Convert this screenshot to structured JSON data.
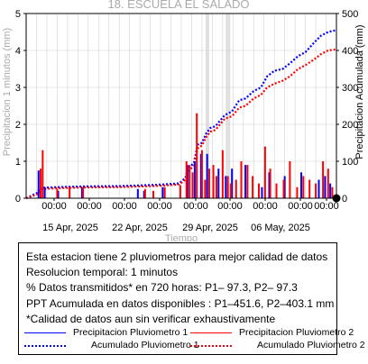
{
  "chart_data": {
    "type": "bar",
    "title": "18. ESCUELA EL SALADO",
    "xlabel": "Tiempo",
    "ylabel_left": "Precipitacion 1 minutos (mm)",
    "ylabel_right": "Precipitacion Acumulada (mm)",
    "ylim_left": [
      0,
      5
    ],
    "ylim_right": [
      0,
      500
    ],
    "yticks_left": [
      "0",
      "1",
      "2",
      "3",
      "4",
      "5"
    ],
    "yticks_right": [
      "0",
      "100",
      "200",
      "300",
      "400",
      "500"
    ],
    "xticks_time": [
      "00:00",
      "00:00",
      "00:00",
      "00:00",
      "00:00",
      "00:00",
      "00:00",
      "00:00",
      "00:00",
      "00:00"
    ],
    "xticks_date": [
      "15 Apr, 2025",
      "22 Apr, 2025",
      "29 Apr, 2025",
      "06 May, 2025"
    ],
    "x_range_days": [
      0,
      30
    ],
    "grid": true,
    "series": [
      {
        "name": "Precipitacion Pluviometro 1",
        "color": "#0000ff",
        "style": "bars",
        "x_days": [
          1.2,
          1.8,
          3.1,
          5.4,
          10.8,
          11.4,
          13.2,
          15.6,
          16.3,
          16.9,
          17.5,
          18.6,
          19.3,
          19.9,
          21.2,
          22.8,
          23.5,
          25.0,
          26.6,
          28.3,
          28.9,
          29.4
        ],
        "values": [
          0.75,
          0.3,
          0.2,
          0.3,
          0.25,
          0.2,
          0.3,
          0.9,
          1.0,
          1.2,
          1.2,
          0.8,
          0.6,
          0.8,
          0.9,
          0.3,
          0.7,
          0.6,
          0.7,
          0.5,
          0.6,
          0.4
        ]
      },
      {
        "name": "Precipitacion Pluviometro 2",
        "color": "#ff0000",
        "style": "bars",
        "x_days": [
          1.4,
          1.6,
          3.0,
          4.2,
          5.5,
          11.5,
          12.3,
          13.4,
          14.9,
          15.5,
          15.8,
          16.1,
          16.5,
          17.0,
          17.3,
          17.7,
          18.1,
          18.4,
          19.0,
          19.5,
          19.8,
          20.3,
          20.8,
          21.4,
          21.9,
          22.5,
          23.1,
          23.6,
          24.2,
          24.9,
          25.5,
          26.2,
          26.8,
          27.4,
          28.0,
          28.7,
          29.2,
          29.6
        ],
        "values": [
          0.8,
          1.3,
          0.25,
          0.3,
          0.3,
          0.25,
          0.2,
          0.3,
          0.35,
          1.0,
          0.9,
          0.7,
          2.3,
          1.3,
          0.5,
          0.8,
          0.9,
          0.6,
          1.3,
          0.6,
          0.4,
          0.5,
          1.0,
          0.9,
          0.6,
          0.4,
          1.4,
          0.8,
          0.4,
          0.5,
          1.0,
          0.3,
          0.6,
          0.5,
          0.4,
          1.0,
          0.8,
          0.3
        ]
      },
      {
        "name": "Acumulado Pluviometro 1",
        "color": "#0000ff",
        "style": "dotted",
        "axis": "right",
        "x_days": [
          0,
          1.1,
          1.3,
          3.0,
          5.5,
          9.0,
          12.5,
          14.8,
          15.4,
          15.6,
          16.2,
          16.6,
          17.0,
          17.4,
          17.8,
          18.3,
          19.2,
          19.9,
          20.6,
          21.2,
          22.0,
          22.7,
          23.3,
          24.0,
          24.8,
          25.5,
          26.3,
          27.0,
          27.8,
          28.5,
          29.2,
          30.0
        ],
        "values": [
          0,
          15,
          28,
          30,
          32,
          33,
          36,
          40,
          55,
          80,
          95,
          145,
          150,
          175,
          190,
          195,
          225,
          235,
          265,
          270,
          290,
          300,
          330,
          345,
          350,
          365,
          385,
          395,
          420,
          440,
          450,
          455
        ]
      },
      {
        "name": "Acumulado Pluviometro 2",
        "color": "#ff0000",
        "style": "dotted",
        "axis": "right",
        "x_days": [
          0,
          1.2,
          1.5,
          3.0,
          5.5,
          9.0,
          12.5,
          14.8,
          15.4,
          15.6,
          16.2,
          16.6,
          17.0,
          17.4,
          17.8,
          18.3,
          19.2,
          19.9,
          20.6,
          21.2,
          22.0,
          22.7,
          23.3,
          24.0,
          24.8,
          25.5,
          26.3,
          27.0,
          27.8,
          28.5,
          29.2,
          30.0
        ],
        "values": [
          0,
          12,
          25,
          27,
          29,
          30,
          33,
          37,
          50,
          70,
          88,
          135,
          143,
          165,
          180,
          185,
          215,
          222,
          245,
          250,
          270,
          280,
          300,
          310,
          318,
          330,
          350,
          360,
          375,
          390,
          400,
          403
        ]
      }
    ],
    "marker_point": {
      "x_days": 30,
      "value": 0,
      "color": "#000000"
    }
  },
  "info": {
    "line1": "Esta estacion tiene 2 pluviometros para mejor calidad de datos",
    "line2": "Resolucion temporal: 1 minutos",
    "line3": "% Datos transmitidos* en 720 horas: P1– 97.3, P2– 97.3",
    "line4": "PPT Acumulada en datos disponibles : P1–451.6, P2–403.1 mm",
    "line5": "*Calidad de datos aun sin verificar exhaustivamente"
  },
  "legend": {
    "p1_bar": "Precipitacion Pluviometro 1",
    "p2_bar": "Precipitacion Pluviometro 2",
    "p1_acc": "Acumulado Pluviometro 1",
    "p2_acc": "Acumulado Pluviometro 2"
  },
  "colors": {
    "blue": "#0000ff",
    "red": "#ff0000",
    "grid": "#d0d0d0",
    "grey_text": "#aaaaaa"
  }
}
